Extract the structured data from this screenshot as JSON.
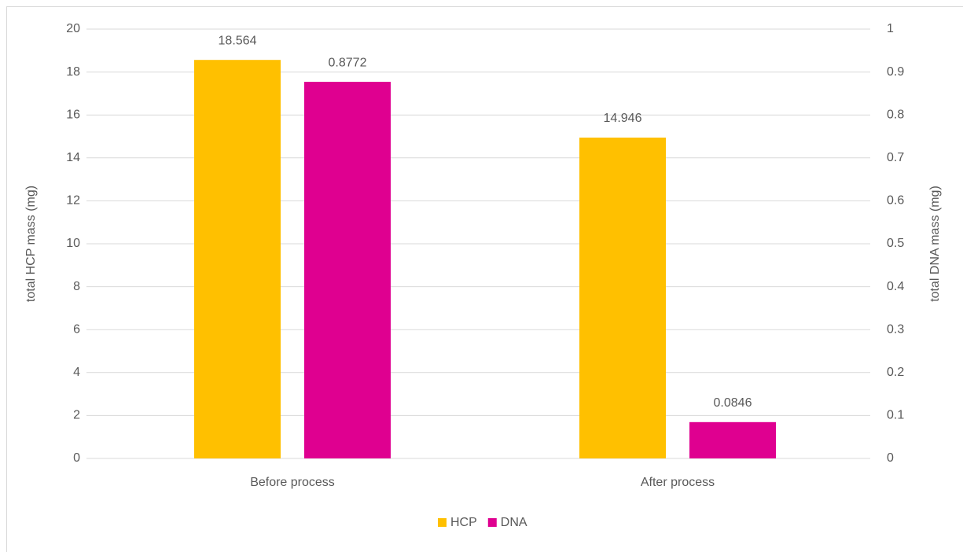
{
  "chart_data": {
    "type": "bar",
    "categories": [
      "Before process",
      "After process"
    ],
    "series": [
      {
        "name": "HCP",
        "color": "#ffc000",
        "values": [
          18.564,
          14.946
        ]
      },
      {
        "name": "DNA",
        "color": "#df0090",
        "values": [
          0.8772,
          0.0846
        ],
        "axis": "y2"
      }
    ],
    "ylabel": "total HCP mass (mg)",
    "y2label": "total DNA mass (mg)",
    "ylim": [
      0,
      20
    ],
    "yticks": [
      0,
      2,
      4,
      6,
      8,
      10,
      12,
      14,
      16,
      18,
      20
    ],
    "y2lim": [
      0,
      1
    ],
    "y2ticks": [
      0,
      0.1,
      0.2,
      0.3,
      0.4,
      0.5,
      0.6,
      0.7,
      0.8,
      0.9,
      1
    ],
    "grid": true,
    "legend": "bottom"
  }
}
